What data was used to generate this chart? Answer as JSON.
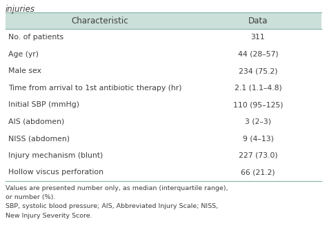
{
  "title_text": "injuries",
  "col_headers": [
    "Characteristic",
    "Data"
  ],
  "rows": [
    [
      "No. of patients",
      "311"
    ],
    [
      "Age (yr)",
      "44 (28–57)"
    ],
    [
      "Male sex",
      "234 (75.2)"
    ],
    [
      "Time from arrival to 1st antibiotic therapy (hr)",
      "2.1 (1.1–4.8)"
    ],
    [
      "Initial SBP (mmHg)",
      "110 (95–125)"
    ],
    [
      "AIS (abdomen)",
      "3 (2–3)"
    ],
    [
      "NISS (abdomen)",
      "9 (4–13)"
    ],
    [
      "Injury mechanism (blunt)",
      "227 (73.0)"
    ],
    [
      "Hollow viscus perforation",
      "66 (21.2)"
    ]
  ],
  "footnote_lines": [
    "Values are presented number only, as median (interquartile range),",
    "or number (%).",
    "SBP, systolic blood pressure; AIS, Abbreviated Injury Scale; NISS,",
    "New Injury Severity Score."
  ],
  "header_bg": "#cce0da",
  "text_color": "#3d3d3d",
  "header_text_color": "#3d3d3d",
  "border_color": "#8ab5ae",
  "font_size": 7.8,
  "header_font_size": 8.5,
  "footnote_font_size": 6.8,
  "title_font_size": 8.5,
  "col_split": 0.595
}
